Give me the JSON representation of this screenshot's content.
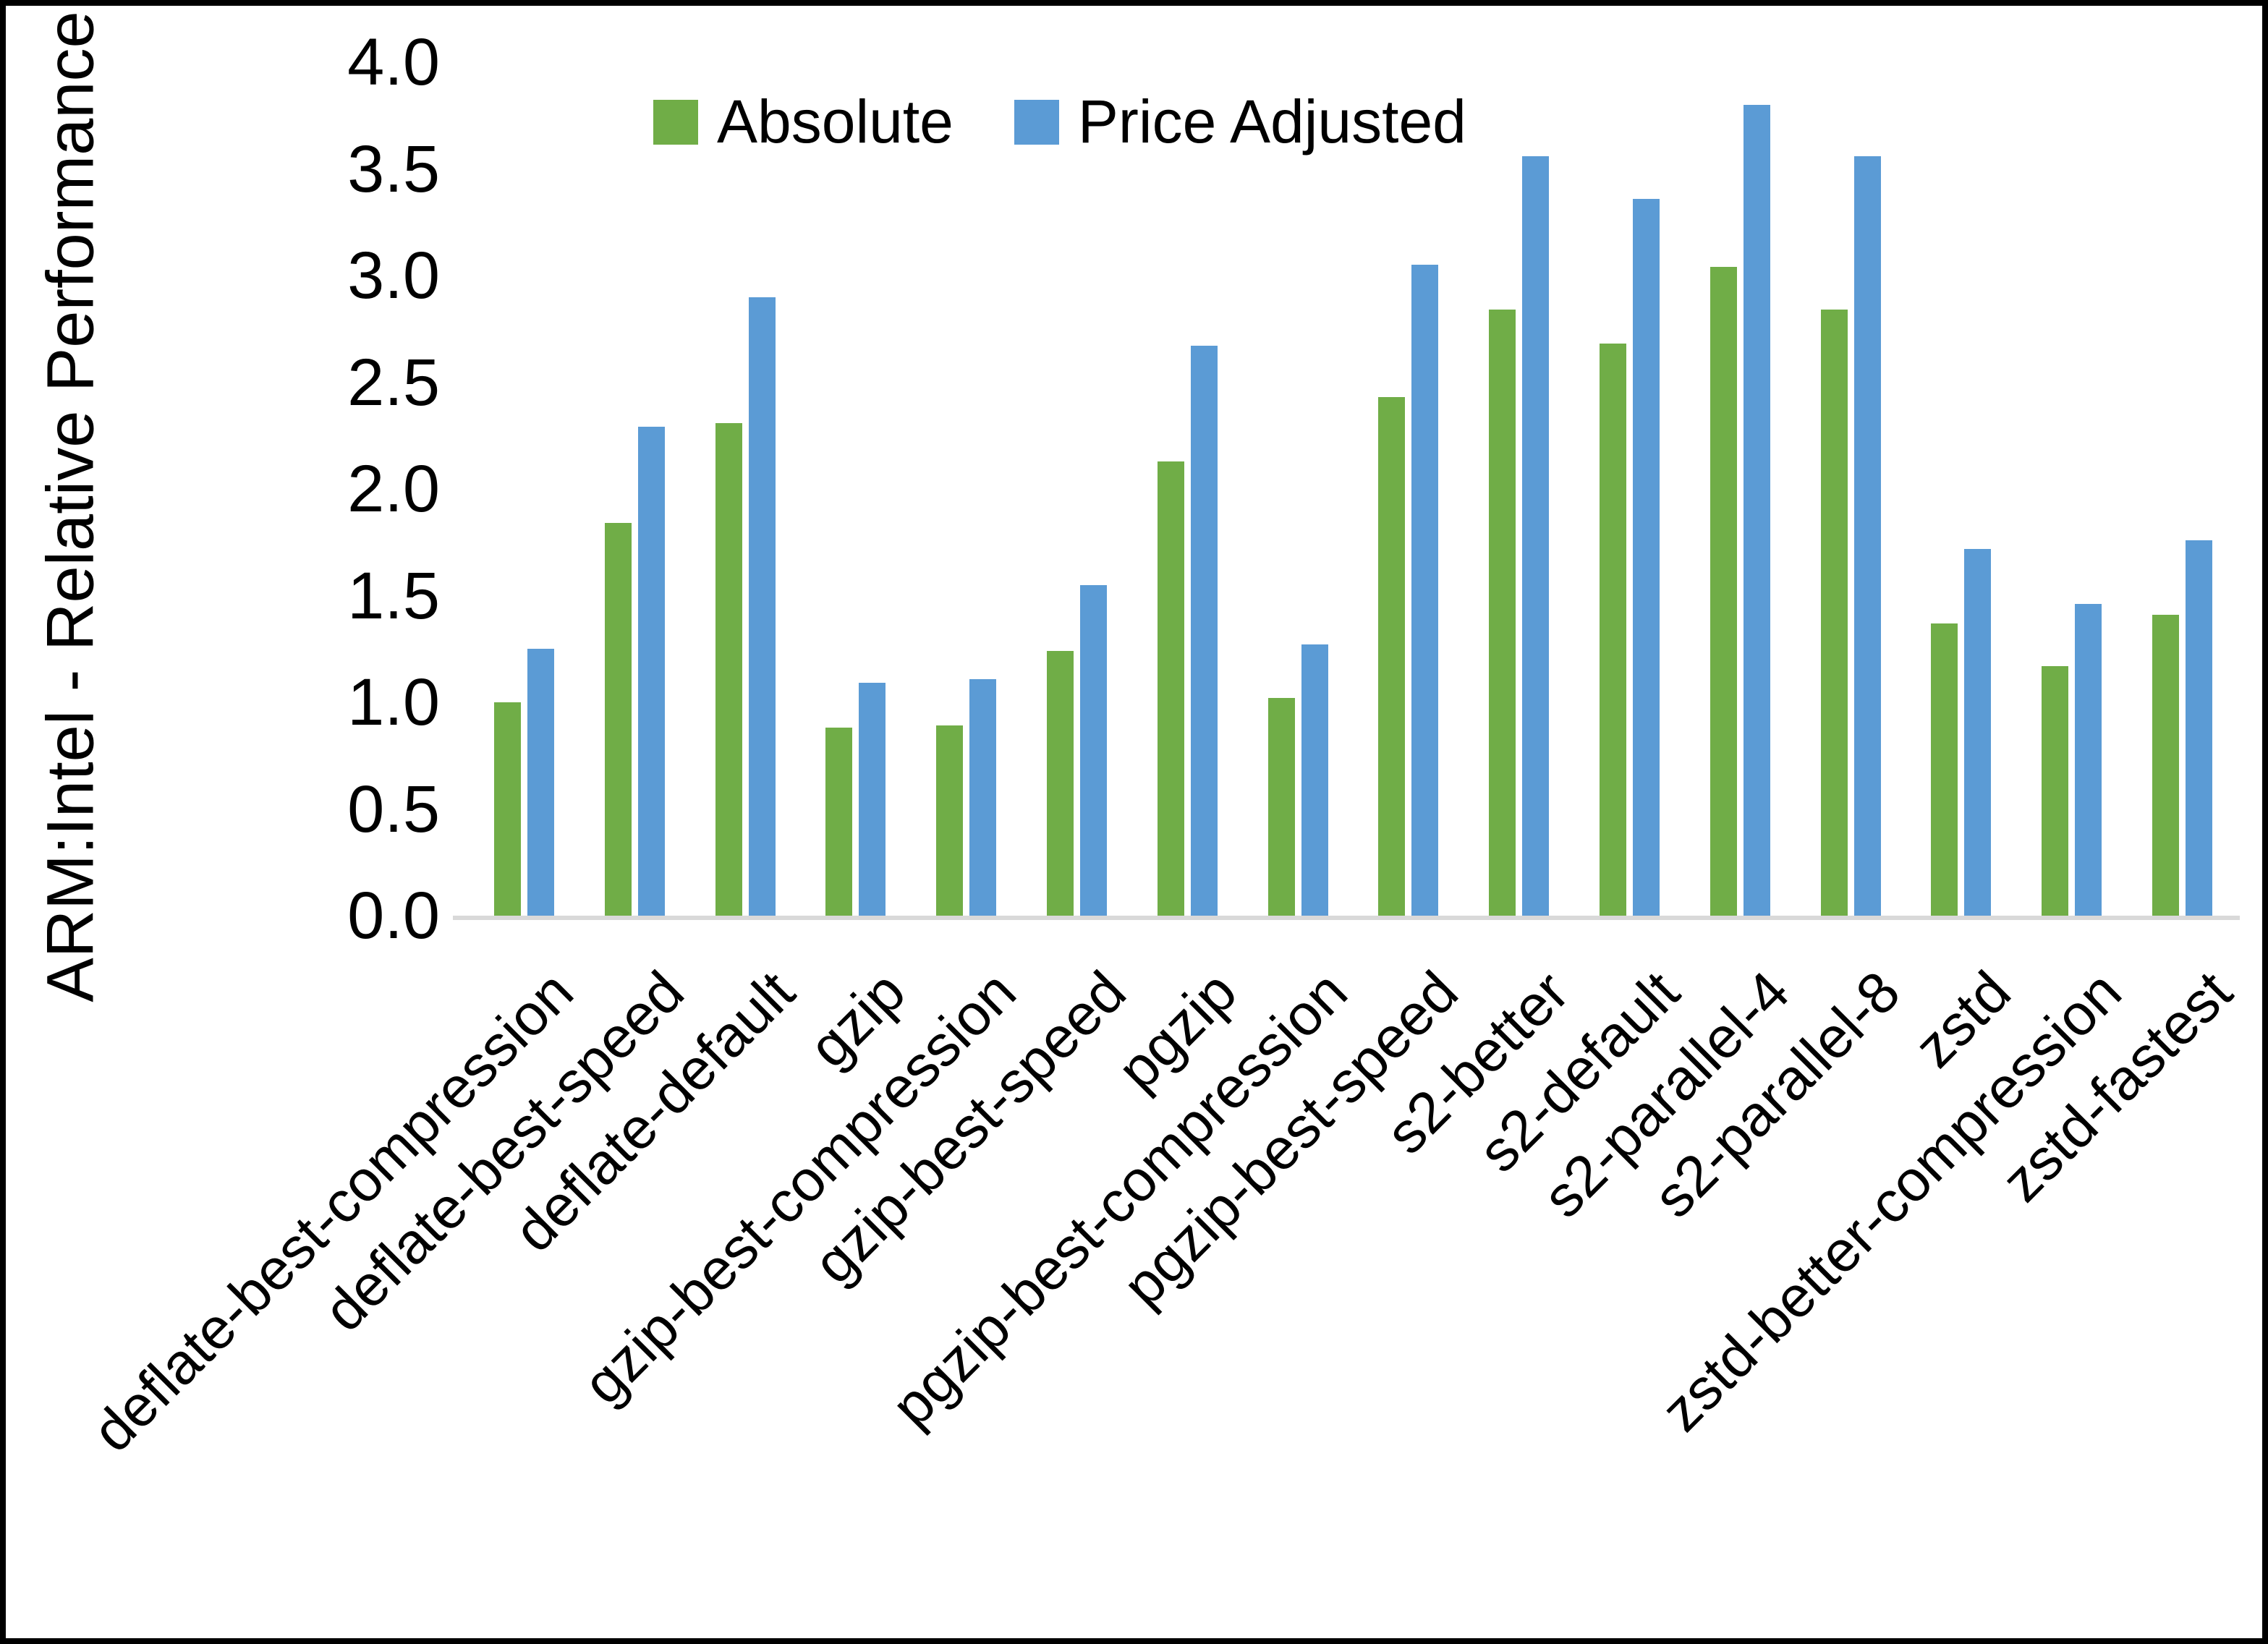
{
  "chart_data": {
    "type": "bar",
    "title": "",
    "xlabel": "",
    "ylabel": "ARM:Intel - Relative Performance",
    "ylim": [
      0.0,
      4.0
    ],
    "ytick_step": 0.5,
    "yticks": [
      "0.0",
      "0.5",
      "1.0",
      "1.5",
      "2.0",
      "2.5",
      "3.0",
      "3.5",
      "4.0"
    ],
    "grid": false,
    "legend_position": "top-center",
    "categories": [
      "deflate-best-compression",
      "deflate-best-speed",
      "deflate-default",
      "gzip",
      "gzip-best-compression",
      "gzip-best-speed",
      "pgzip",
      "pgzip-best-compression",
      "pgzip-best-speed",
      "s2-better",
      "s2-default",
      "s2-parallel-4",
      "s2-parallel-8",
      "zstd",
      "zstd-better-compression",
      "zstd-fastest"
    ],
    "series": [
      {
        "name": "Absolute",
        "color": "#70AD47",
        "values": [
          1.0,
          1.84,
          2.31,
          0.88,
          0.89,
          1.24,
          2.13,
          1.02,
          2.43,
          2.84,
          2.68,
          3.04,
          2.84,
          1.37,
          1.17,
          1.41
        ]
      },
      {
        "name": "Price Adjusted",
        "color": "#5B9BD5",
        "values": [
          1.25,
          2.29,
          2.9,
          1.09,
          1.11,
          1.55,
          2.67,
          1.27,
          3.05,
          3.56,
          3.36,
          3.8,
          3.56,
          1.72,
          1.46,
          1.76
        ]
      }
    ]
  },
  "colors": {
    "background": "#FFFFFF",
    "frame": "#000000",
    "axis_line": "#D9D9D9",
    "text": "#000000"
  }
}
